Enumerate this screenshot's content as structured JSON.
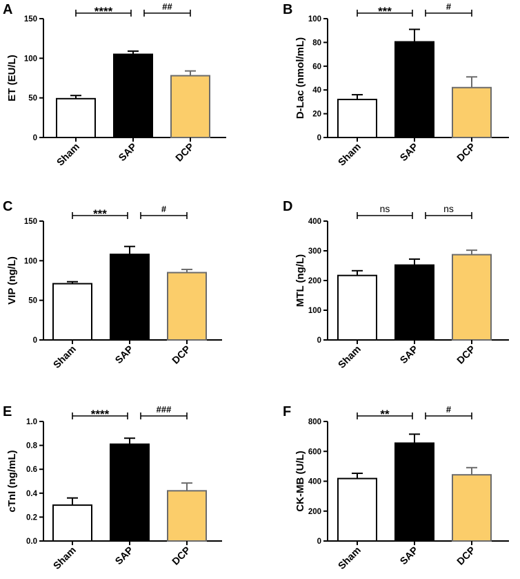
{
  "colors": {
    "sham": "#ffffff",
    "sap": "#000000",
    "dcp": "#fbcd6a",
    "dcp_edge": "#6b6b6b",
    "axis": "#000000"
  },
  "chart_data": [
    {
      "panel": "A",
      "type": "bar",
      "ylabel": "ET (EU/L)",
      "categories": [
        "Sham",
        "SAP",
        "DCP"
      ],
      "values": [
        49,
        105,
        78
      ],
      "errors": [
        4,
        4,
        6
      ],
      "ylim": [
        0,
        150
      ],
      "yticks": [
        0,
        50,
        100,
        150
      ],
      "tick_labels": [
        "0",
        "50",
        "100",
        "150"
      ],
      "significance": [
        {
          "from": 0,
          "to": 1,
          "label": "****"
        },
        {
          "from": 1,
          "to": 2,
          "label": "##"
        }
      ]
    },
    {
      "panel": "B",
      "type": "bar",
      "ylabel": "D-Lac (nmol/mL)",
      "categories": [
        "Sham",
        "SAP",
        "DCP"
      ],
      "values": [
        32,
        80.5,
        42
      ],
      "errors": [
        4,
        10.5,
        9
      ],
      "ylim": [
        0,
        100
      ],
      "yticks": [
        0,
        20,
        40,
        60,
        80,
        100
      ],
      "tick_labels": [
        "0",
        "20",
        "40",
        "60",
        "80",
        "100"
      ],
      "significance": [
        {
          "from": 0,
          "to": 1,
          "label": "***"
        },
        {
          "from": 1,
          "to": 2,
          "label": "#"
        }
      ]
    },
    {
      "panel": "C",
      "type": "bar",
      "ylabel": "VIP (ng/L)",
      "categories": [
        "Sham",
        "SAP",
        "DCP"
      ],
      "values": [
        71,
        108,
        85
      ],
      "errors": [
        2.5,
        10,
        4
      ],
      "ylim": [
        0,
        150
      ],
      "yticks": [
        0,
        50,
        100,
        150
      ],
      "tick_labels": [
        "0",
        "50",
        "100",
        "150"
      ],
      "significance": [
        {
          "from": 0,
          "to": 1,
          "label": "***"
        },
        {
          "from": 1,
          "to": 2,
          "label": "#"
        }
      ]
    },
    {
      "panel": "D",
      "type": "bar",
      "ylabel": "MTL (ng/L)",
      "categories": [
        "Sham",
        "SAP",
        "DCP"
      ],
      "values": [
        217,
        252,
        287
      ],
      "errors": [
        16,
        20,
        15
      ],
      "ylim": [
        0,
        400
      ],
      "yticks": [
        0,
        100,
        200,
        300,
        400
      ],
      "tick_labels": [
        "0",
        "100",
        "200",
        "300",
        "400"
      ],
      "significance": [
        {
          "from": 0,
          "to": 1,
          "label": "ns"
        },
        {
          "from": 1,
          "to": 2,
          "label": "ns"
        }
      ]
    },
    {
      "panel": "E",
      "type": "bar",
      "ylabel": "cTnI (ng/mL)",
      "categories": [
        "Sham",
        "SAP",
        "DCP"
      ],
      "values": [
        0.3,
        0.81,
        0.42
      ],
      "errors": [
        0.06,
        0.05,
        0.065
      ],
      "ylim": [
        0,
        1.0
      ],
      "yticks": [
        0,
        0.2,
        0.4,
        0.6,
        0.8,
        1.0
      ],
      "tick_labels": [
        "0.0",
        "0.2",
        "0.4",
        "0.6",
        "0.8",
        "1.0"
      ],
      "significance": [
        {
          "from": 0,
          "to": 1,
          "label": "****"
        },
        {
          "from": 1,
          "to": 2,
          "label": "###"
        }
      ]
    },
    {
      "panel": "F",
      "type": "bar",
      "ylabel": "CK-MB (U/L)",
      "categories": [
        "Sham",
        "SAP",
        "DCP"
      ],
      "values": [
        418,
        655,
        443
      ],
      "errors": [
        35,
        60,
        48
      ],
      "ylim": [
        0,
        800
      ],
      "yticks": [
        0,
        200,
        400,
        600,
        800
      ],
      "tick_labels": [
        "0",
        "200",
        "400",
        "600",
        "800"
      ],
      "significance": [
        {
          "from": 0,
          "to": 1,
          "label": "**"
        },
        {
          "from": 1,
          "to": 2,
          "label": "#"
        }
      ]
    }
  ]
}
